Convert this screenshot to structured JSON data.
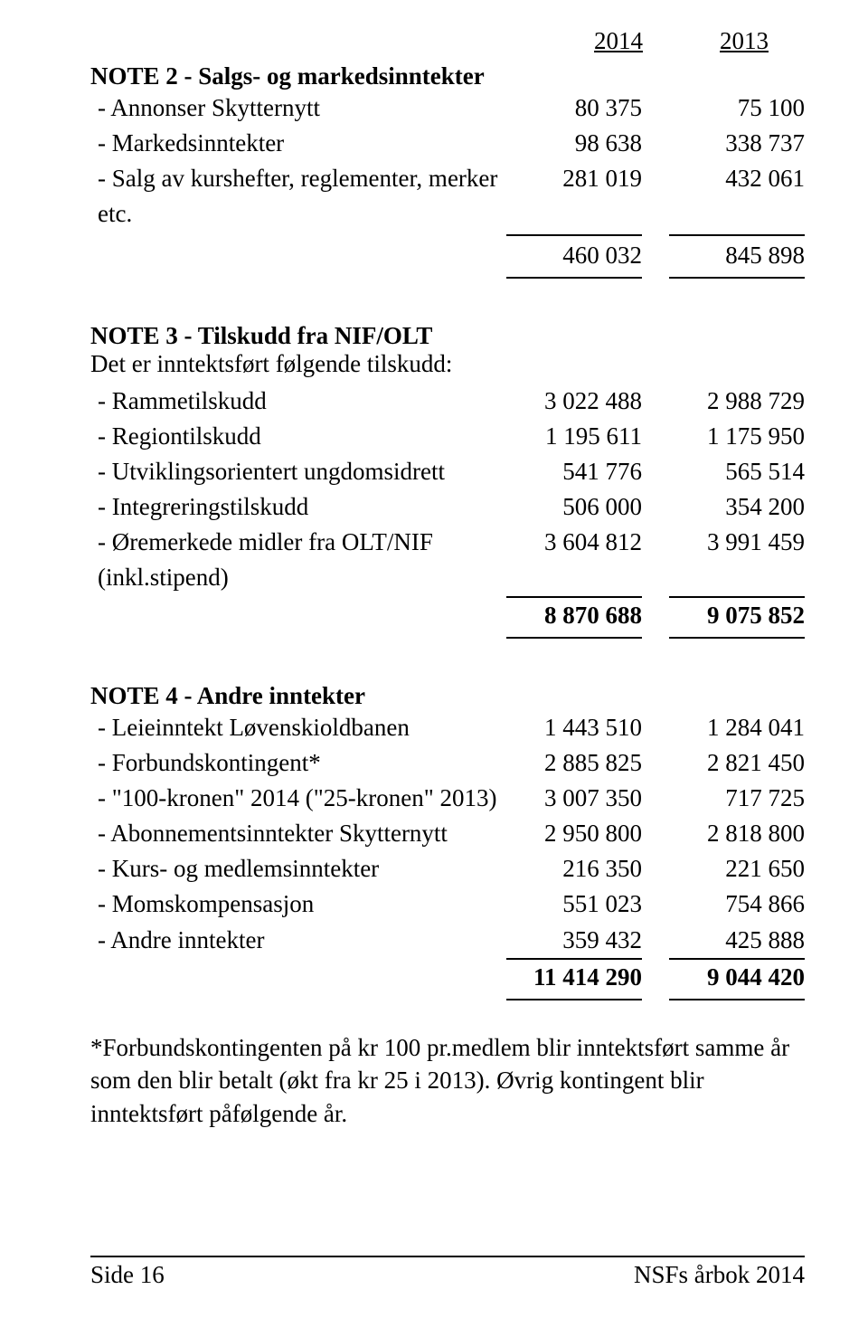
{
  "header": {
    "y2014": "2014",
    "y2013": "2013"
  },
  "note2": {
    "title": "NOTE 2 - Salgs- og markedsinntekter",
    "rows": [
      {
        "label": " - Annonser Skytternytt",
        "v14": "80 375",
        "v13": "75 100"
      },
      {
        "label": " - Markedsinntekter",
        "v14": "98 638",
        "v13": "338 737"
      },
      {
        "label": " - Salg av kurshefter, reglementer, merker etc.",
        "v14": "281 019",
        "v13": "432 061"
      }
    ],
    "total": {
      "v14": "460 032",
      "v13": "845 898"
    }
  },
  "note3": {
    "title": "NOTE 3 - Tilskudd fra NIF/OLT",
    "subtitle": "Det er inntektsført følgende tilskudd:",
    "rows": [
      {
        "label": " - Rammetilskudd",
        "v14": "3 022 488",
        "v13": "2 988 729"
      },
      {
        "label": " - Regiontilskudd",
        "v14": "1 195 611",
        "v13": "1 175 950"
      },
      {
        "label": " - Utviklingsorientert ungdomsidrett",
        "v14": "541 776",
        "v13": "565 514"
      },
      {
        "label": " - Integreringstilskudd",
        "v14": "506 000",
        "v13": "354 200"
      },
      {
        "label": " - Øremerkede midler fra OLT/NIF (inkl.stipend)",
        "v14": "3 604 812",
        "v13": "3 991 459"
      }
    ],
    "total": {
      "v14": "8 870 688",
      "v13": "9 075 852"
    }
  },
  "note4": {
    "title": "NOTE 4 - Andre inntekter",
    "rows": [
      {
        "label": " - Leieinntekt Løvenskioldbanen",
        "v14": "1 443 510",
        "v13": "1 284 041"
      },
      {
        "label": " - Forbundskontingent*",
        "v14": "2 885 825",
        "v13": "2 821 450"
      },
      {
        "label": " - \"100-kronen\" 2014 (\"25-kronen\" 2013)",
        "v14": "3 007 350",
        "v13": "717 725"
      },
      {
        "label": " - Abonnementsinntekter Skytternytt",
        "v14": "2 950 800",
        "v13": "2 818 800"
      },
      {
        "label": " - Kurs- og medlemsinntekter",
        "v14": "216 350",
        "v13": "221 650"
      },
      {
        "label": " - Momskompensasjon",
        "v14": "551 023",
        "v13": "754 866"
      },
      {
        "label": " - Andre inntekter",
        "v14": "359 432",
        "v13": "425 888"
      }
    ],
    "total": {
      "v14": "11 414 290",
      "v13": "9 044 420"
    }
  },
  "footnote": "*Forbundskontingenten på kr 100 pr.medlem blir inntektsført samme år som den blir betalt (økt fra kr 25 i 2013). Øvrig kontingent blir inntektsført påfølgende år.",
  "footer": {
    "left": "Side 16",
    "right": "NSFs årbok 2014"
  }
}
